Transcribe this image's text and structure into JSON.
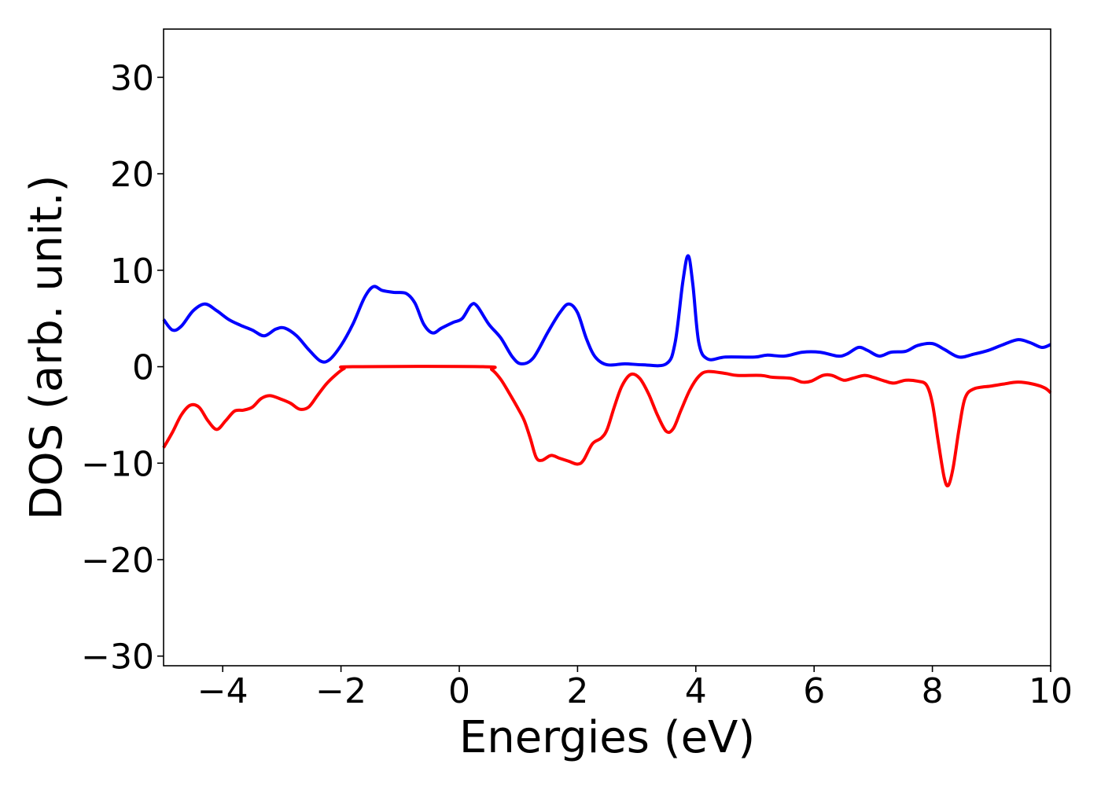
{
  "chart_data": {
    "type": "line",
    "xlabel": "Energies (eV)",
    "ylabel": "DOS (arb. unit.)",
    "xlim": [
      -5,
      10
    ],
    "ylim": [
      -31,
      35
    ],
    "xticks": [
      -4,
      -2,
      0,
      2,
      4,
      6,
      8,
      10
    ],
    "xtick_labels": [
      "−4",
      "−2",
      "0",
      "2",
      "4",
      "6",
      "8",
      "10"
    ],
    "yticks": [
      -30,
      -20,
      -10,
      0,
      10,
      20,
      30
    ],
    "ytick_labels": [
      "−30",
      "−20",
      "−10",
      "0",
      "10",
      "20",
      "30"
    ],
    "grid": false,
    "series": [
      {
        "color": "#0000ff",
        "points": [
          [
            -5.0,
            4.9
          ],
          [
            -4.85,
            3.8
          ],
          [
            -4.7,
            4.2
          ],
          [
            -4.5,
            5.8
          ],
          [
            -4.3,
            6.5
          ],
          [
            -4.1,
            5.8
          ],
          [
            -3.9,
            4.9
          ],
          [
            -3.7,
            4.3
          ],
          [
            -3.5,
            3.8
          ],
          [
            -3.3,
            3.2
          ],
          [
            -3.1,
            3.9
          ],
          [
            -2.95,
            4.0
          ],
          [
            -2.75,
            3.2
          ],
          [
            -2.55,
            1.8
          ],
          [
            -2.35,
            0.6
          ],
          [
            -2.2,
            0.7
          ],
          [
            -2.0,
            2.2
          ],
          [
            -1.8,
            4.4
          ],
          [
            -1.6,
            7.2
          ],
          [
            -1.45,
            8.3
          ],
          [
            -1.3,
            7.9
          ],
          [
            -1.1,
            7.7
          ],
          [
            -0.9,
            7.6
          ],
          [
            -0.75,
            6.6
          ],
          [
            -0.6,
            4.4
          ],
          [
            -0.45,
            3.5
          ],
          [
            -0.3,
            4.0
          ],
          [
            -0.1,
            4.6
          ],
          [
            0.05,
            5.0
          ],
          [
            0.2,
            6.4
          ],
          [
            0.3,
            6.3
          ],
          [
            0.5,
            4.4
          ],
          [
            0.7,
            3.0
          ],
          [
            0.9,
            1.0
          ],
          [
            1.05,
            0.3
          ],
          [
            1.25,
            0.9
          ],
          [
            1.5,
            3.6
          ],
          [
            1.7,
            5.6
          ],
          [
            1.85,
            6.5
          ],
          [
            2.0,
            5.6
          ],
          [
            2.15,
            2.9
          ],
          [
            2.3,
            1.0
          ],
          [
            2.5,
            0.2
          ],
          [
            2.8,
            0.3
          ],
          [
            3.1,
            0.2
          ],
          [
            3.5,
            0.3
          ],
          [
            3.65,
            2.5
          ],
          [
            3.78,
            8.8
          ],
          [
            3.87,
            11.5
          ],
          [
            3.95,
            8.5
          ],
          [
            4.05,
            2.5
          ],
          [
            4.2,
            0.8
          ],
          [
            4.5,
            1.0
          ],
          [
            5.0,
            1.0
          ],
          [
            5.2,
            1.2
          ],
          [
            5.5,
            1.1
          ],
          [
            5.8,
            1.5
          ],
          [
            6.1,
            1.5
          ],
          [
            6.4,
            1.1
          ],
          [
            6.55,
            1.3
          ],
          [
            6.75,
            2.0
          ],
          [
            6.9,
            1.7
          ],
          [
            7.1,
            1.1
          ],
          [
            7.3,
            1.5
          ],
          [
            7.55,
            1.6
          ],
          [
            7.75,
            2.2
          ],
          [
            8.0,
            2.4
          ],
          [
            8.2,
            1.8
          ],
          [
            8.45,
            1.0
          ],
          [
            8.7,
            1.3
          ],
          [
            8.95,
            1.7
          ],
          [
            9.2,
            2.3
          ],
          [
            9.45,
            2.8
          ],
          [
            9.65,
            2.5
          ],
          [
            9.85,
            2.0
          ],
          [
            10.0,
            2.3
          ]
        ]
      },
      {
        "color": "#ff0000",
        "points": [
          [
            -5.0,
            -8.4
          ],
          [
            -4.85,
            -6.8
          ],
          [
            -4.7,
            -5.0
          ],
          [
            -4.55,
            -4.0
          ],
          [
            -4.4,
            -4.2
          ],
          [
            -4.25,
            -5.6
          ],
          [
            -4.1,
            -6.5
          ],
          [
            -3.95,
            -5.6
          ],
          [
            -3.8,
            -4.6
          ],
          [
            -3.65,
            -4.5
          ],
          [
            -3.5,
            -4.2
          ],
          [
            -3.35,
            -3.3
          ],
          [
            -3.2,
            -3.0
          ],
          [
            -3.0,
            -3.4
          ],
          [
            -2.85,
            -3.8
          ],
          [
            -2.7,
            -4.4
          ],
          [
            -2.55,
            -4.2
          ],
          [
            -2.4,
            -3.0
          ],
          [
            -2.25,
            -1.8
          ],
          [
            -2.1,
            -0.9
          ],
          [
            -1.95,
            -0.2
          ],
          [
            -1.8,
            0.0
          ],
          [
            0.4,
            0.0
          ],
          [
            0.55,
            -0.3
          ],
          [
            0.7,
            -1.3
          ],
          [
            0.85,
            -2.8
          ],
          [
            1.0,
            -4.4
          ],
          [
            1.1,
            -5.6
          ],
          [
            1.2,
            -7.4
          ],
          [
            1.3,
            -9.4
          ],
          [
            1.4,
            -9.7
          ],
          [
            1.55,
            -9.2
          ],
          [
            1.7,
            -9.5
          ],
          [
            1.85,
            -9.8
          ],
          [
            2.0,
            -10.1
          ],
          [
            2.1,
            -9.7
          ],
          [
            2.25,
            -8.0
          ],
          [
            2.4,
            -7.4
          ],
          [
            2.5,
            -6.5
          ],
          [
            2.62,
            -4.2
          ],
          [
            2.75,
            -2.0
          ],
          [
            2.9,
            -0.8
          ],
          [
            3.05,
            -1.2
          ],
          [
            3.2,
            -2.8
          ],
          [
            3.35,
            -5.0
          ],
          [
            3.5,
            -6.7
          ],
          [
            3.62,
            -6.4
          ],
          [
            3.75,
            -4.5
          ],
          [
            3.9,
            -2.4
          ],
          [
            4.05,
            -1.0
          ],
          [
            4.2,
            -0.5
          ],
          [
            4.5,
            -0.7
          ],
          [
            4.7,
            -0.9
          ],
          [
            5.1,
            -0.9
          ],
          [
            5.3,
            -1.1
          ],
          [
            5.6,
            -1.2
          ],
          [
            5.8,
            -1.6
          ],
          [
            5.95,
            -1.5
          ],
          [
            6.15,
            -0.9
          ],
          [
            6.3,
            -0.9
          ],
          [
            6.5,
            -1.4
          ],
          [
            6.65,
            -1.2
          ],
          [
            6.85,
            -0.9
          ],
          [
            7.0,
            -1.1
          ],
          [
            7.2,
            -1.5
          ],
          [
            7.35,
            -1.7
          ],
          [
            7.55,
            -1.4
          ],
          [
            7.75,
            -1.5
          ],
          [
            7.9,
            -1.9
          ],
          [
            8.0,
            -3.8
          ],
          [
            8.1,
            -7.8
          ],
          [
            8.2,
            -11.5
          ],
          [
            8.27,
            -12.3
          ],
          [
            8.35,
            -10.5
          ],
          [
            8.45,
            -6.5
          ],
          [
            8.55,
            -3.3
          ],
          [
            8.7,
            -2.3
          ],
          [
            9.0,
            -2.0
          ],
          [
            9.2,
            -1.8
          ],
          [
            9.45,
            -1.6
          ],
          [
            9.7,
            -1.8
          ],
          [
            9.9,
            -2.2
          ],
          [
            10.0,
            -2.7
          ]
        ]
      }
    ]
  }
}
